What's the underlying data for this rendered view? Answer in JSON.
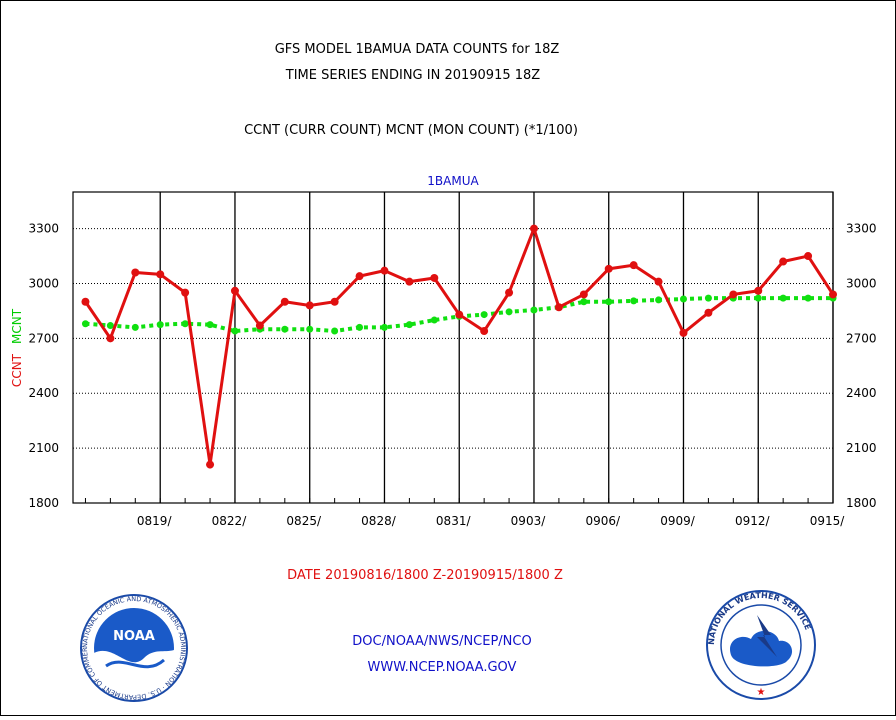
{
  "header": {
    "line1": "GFS MODEL 1BAMUA DATA COUNTS for 18Z",
    "line2": "TIME SERIES ENDING IN 20190915 18Z",
    "line3": "CCNT (CURR COUNT) MCNT (MON COUNT) (*1/100)"
  },
  "footer": {
    "date_range": "DATE 20190816/1800 Z-20190915/1800 Z",
    "org": "DOC/NOAA/NWS/NCEP/NCO",
    "url": "WWW.NCEP.NOAA.GOV"
  },
  "logos": {
    "noaa": {
      "center_text": "NOAA",
      "ring_text": "NATIONAL OCEANIC AND ATMOSPHERIC ADMINISTRATION · U.S. DEPARTMENT OF COMMERCE ·"
    },
    "nws": {
      "ring_text": "NATIONAL WEATHER SERVICE"
    }
  },
  "colors": {
    "ccnt": "#e01010",
    "mcnt": "#10e010",
    "frame": "#000000",
    "title_blue": "#1010c8"
  },
  "chart_data": {
    "type": "line",
    "title": "1BAMUA",
    "ylabel_left": [
      "CCNT",
      "MCNT"
    ],
    "ylim": [
      1800,
      3500
    ],
    "yticks": [
      1800,
      2100,
      2400,
      2700,
      3000,
      3300
    ],
    "xlim": [
      0,
      30
    ],
    "xticks": [
      {
        "x": 3,
        "label": "0819/"
      },
      {
        "x": 6,
        "label": "0822/"
      },
      {
        "x": 9,
        "label": "0825/"
      },
      {
        "x": 12,
        "label": "0828/"
      },
      {
        "x": 15,
        "label": "0831/"
      },
      {
        "x": 18,
        "label": "0903/"
      },
      {
        "x": 21,
        "label": "0906/"
      },
      {
        "x": 24,
        "label": "0909/"
      },
      {
        "x": 27,
        "label": "0912/"
      },
      {
        "x": 30,
        "label": "0915/"
      }
    ],
    "grid": true,
    "x": [
      0,
      1,
      2,
      3,
      4,
      5,
      6,
      7,
      8,
      9,
      10,
      11,
      12,
      13,
      14,
      15,
      16,
      17,
      18,
      19,
      20,
      21,
      22,
      23,
      24,
      25,
      26,
      27,
      28,
      29,
      30
    ],
    "series": [
      {
        "name": "CCNT",
        "color": "#e01010",
        "style": "solid",
        "values": [
          2900,
          2700,
          3060,
          3050,
          2950,
          2010,
          2960,
          2770,
          2900,
          2880,
          2900,
          3040,
          3070,
          3010,
          3030,
          2830,
          2740,
          2950,
          3300,
          2870,
          2940,
          3080,
          3100,
          3010,
          2730,
          2840,
          2940,
          2960,
          3120,
          3150,
          2940
        ]
      },
      {
        "name": "MCNT",
        "color": "#10e010",
        "style": "dashed",
        "values": [
          2780,
          2770,
          2760,
          2775,
          2780,
          2775,
          2740,
          2750,
          2750,
          2750,
          2740,
          2760,
          2760,
          2775,
          2800,
          2820,
          2830,
          2845,
          2855,
          2870,
          2900,
          2900,
          2905,
          2910,
          2915,
          2920,
          2920,
          2920,
          2920,
          2920,
          2920
        ]
      }
    ]
  }
}
